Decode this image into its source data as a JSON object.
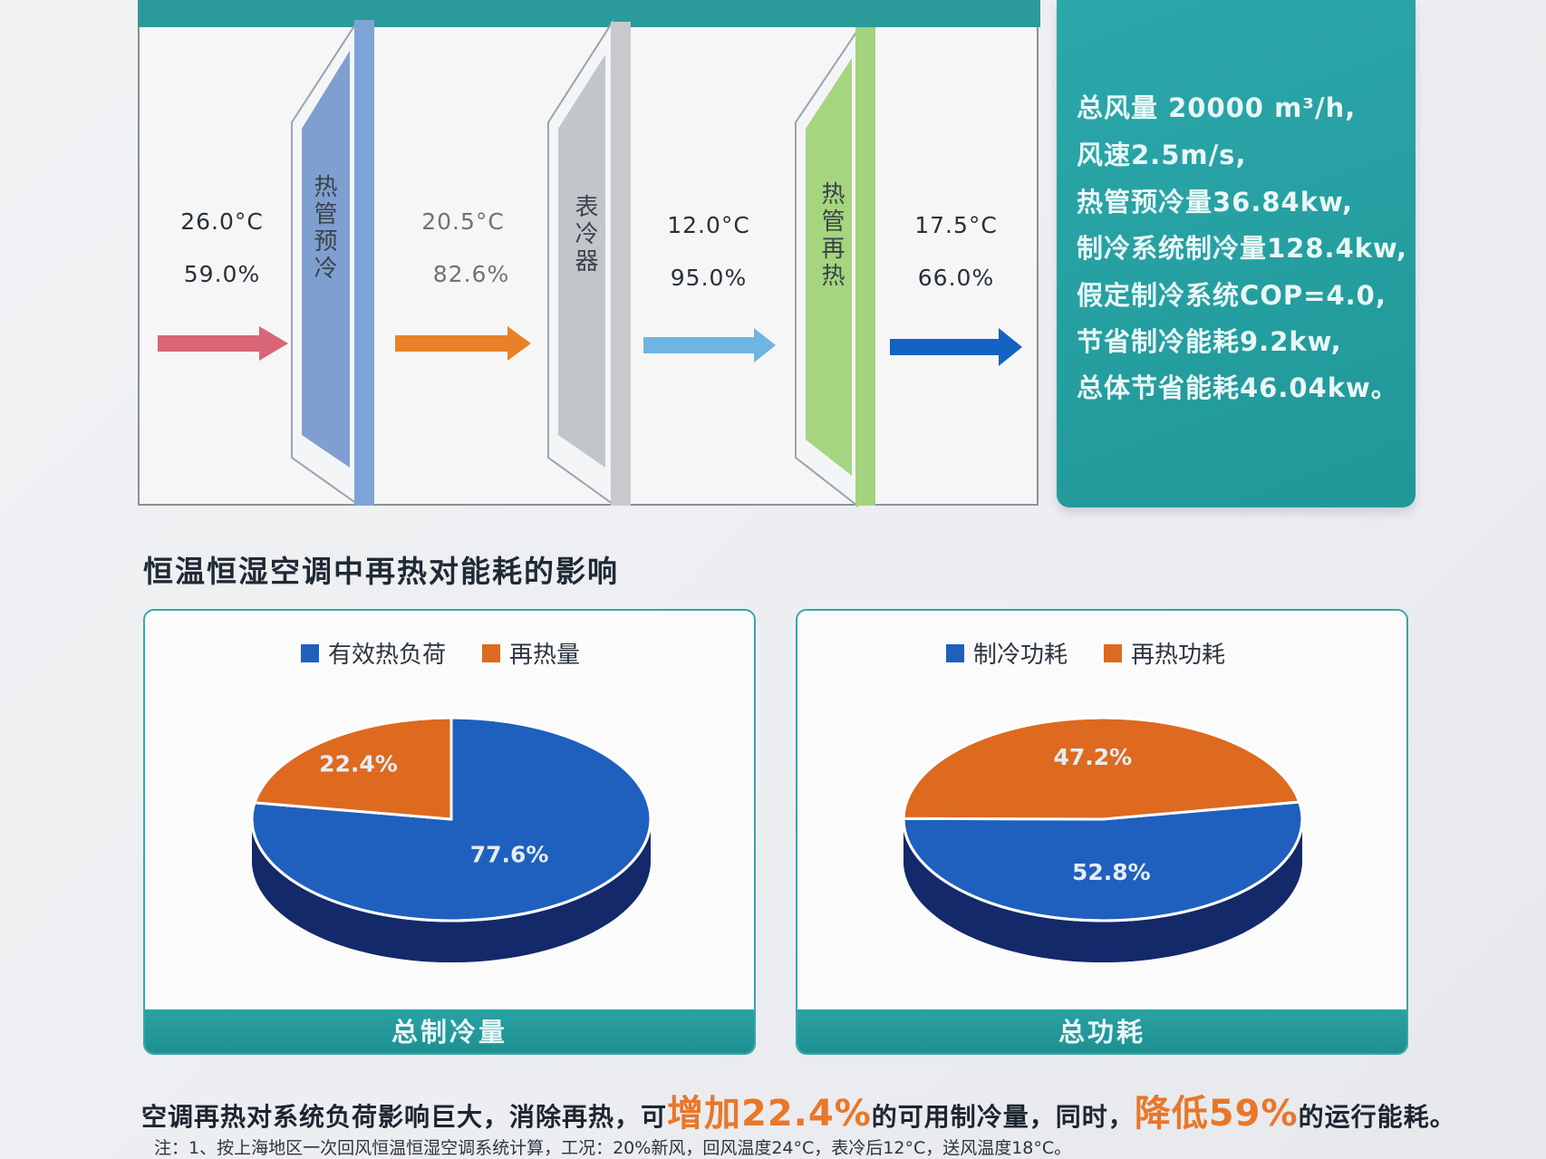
{
  "process": {
    "stages": [
      {
        "temp": "26.0°C",
        "rh": "59.0%"
      },
      {
        "temp": "20.5°C",
        "rh": "82.6%"
      },
      {
        "temp": "12.0°C",
        "rh": "95.0%"
      },
      {
        "temp": "17.5°C",
        "rh": "66.0%"
      }
    ],
    "panels": [
      "热管预冷",
      "表冷器",
      "热管再热"
    ],
    "colors": {
      "arrow1": "#d86676",
      "arrow2": "#e8822a",
      "arrow3": "#6fb5e3",
      "arrow4": "#1463c2"
    }
  },
  "info": {
    "lines": [
      "总风量 20000 m³/h,",
      "风速2.5m/s,",
      "热管预冷量36.84kw,",
      "制冷系统制冷量128.4kw,",
      "假定制冷系统COP=4.0,",
      "节省制冷能耗9.2kw,",
      "总体节省能耗46.04kw。"
    ]
  },
  "section_title": "恒温恒湿空调中再热对能耗的影响",
  "chart_data": [
    {
      "type": "pie",
      "title": "总制冷量",
      "categories": [
        "有效热负荷",
        "再热量"
      ],
      "values": [
        77.6,
        22.4
      ],
      "labels": [
        "77.6%",
        "22.4%"
      ],
      "colors": [
        "#1f5fbd",
        "#dd6a1f"
      ],
      "legend": "top"
    },
    {
      "type": "pie",
      "title": "总功耗",
      "categories": [
        "制冷功耗",
        "再热功耗"
      ],
      "values": [
        52.8,
        47.2
      ],
      "labels": [
        "52.8%",
        "47.2%"
      ],
      "colors": [
        "#1f5fbd",
        "#dd6a1f"
      ],
      "legend": "top"
    }
  ],
  "bottom": {
    "part1": "空调再热对系统负荷影响巨大，消除再热，可",
    "hl1": "增加22.4%",
    "part2": "的可用制冷量，同时，",
    "hl2": "降低59%",
    "part3": "的运行能耗。"
  },
  "note": "注：1、按上海地区一次回风恒温恒湿空调系统计算，工况：20%新风，回风温度24°C，表冷后12°C，送风温度18°C。"
}
